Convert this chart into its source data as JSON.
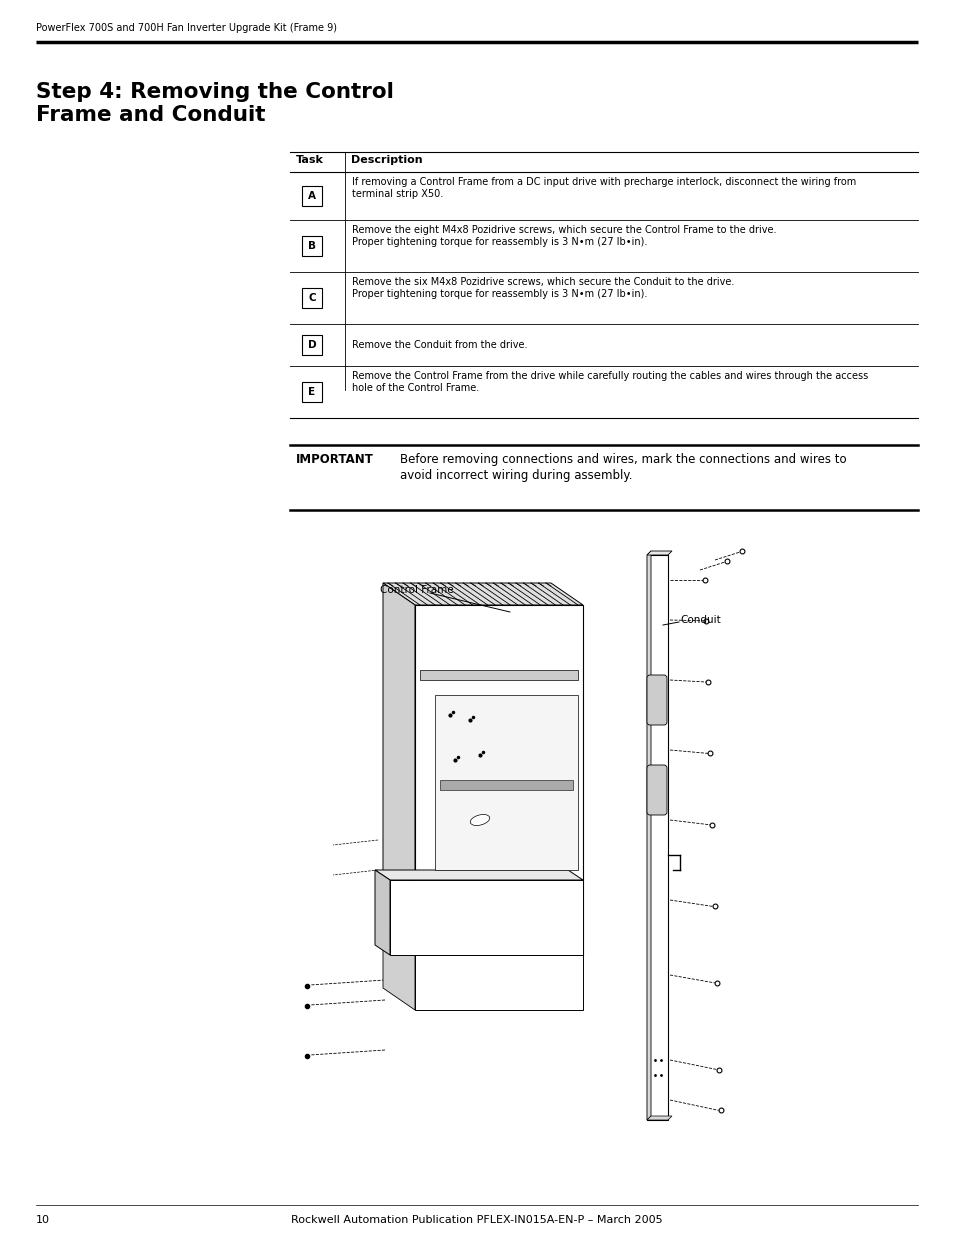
{
  "header_text": "PowerFlex 700S and 700H Fan Inverter Upgrade Kit (Frame 9)",
  "title_line1": "Step 4: Removing the Control",
  "title_line2": "Frame and Conduit",
  "table_col1_header": "Task",
  "table_col2_header": "Description",
  "table_rows": [
    {
      "task": "A",
      "desc_line1": "If removing a Control Frame from a DC input drive with precharge interlock, disconnect the wiring from",
      "desc_line2": "terminal strip X50."
    },
    {
      "task": "B",
      "desc_line1": "Remove the eight M4x8 Pozidrive screws, which secure the Control Frame to the drive.",
      "desc_line2": "Proper tightening torque for reassembly is 3 N•m (27 lb•in)."
    },
    {
      "task": "C",
      "desc_line1": "Remove the six M4x8 Pozidrive screws, which secure the Conduit to the drive.",
      "desc_line2": "Proper tightening torque for reassembly is 3 N•m (27 lb•in)."
    },
    {
      "task": "D",
      "desc_line1": "Remove the Conduit from the drive.",
      "desc_line2": ""
    },
    {
      "task": "E",
      "desc_line1": "Remove the Control Frame from the drive while carefully routing the cables and wires through the access",
      "desc_line2": "hole of the Control Frame."
    }
  ],
  "important_label": "IMPORTANT",
  "important_line1": "Before removing connections and wires, mark the connections and wires to",
  "important_line2": "avoid incorrect wiring during assembly.",
  "diagram_label_control_frame": "Control Frame",
  "diagram_label_conduit": "Conduit",
  "footer_page": "10",
  "footer_text": "Rockwell Automation Publication PFLEX-IN015A-EN-P – March 2005",
  "bg_color": "#ffffff",
  "text_color": "#000000"
}
